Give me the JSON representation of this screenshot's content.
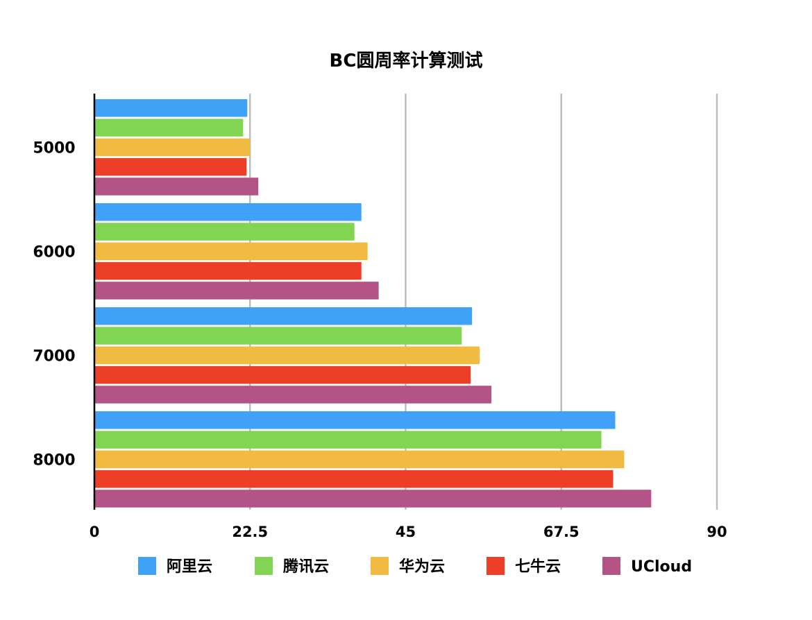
{
  "chart_data": {
    "type": "bar",
    "orientation": "horizontal",
    "title": "BC圆周率计算测试",
    "categories": [
      "5000",
      "6000",
      "7000",
      "8000"
    ],
    "series": [
      {
        "name": "阿里云",
        "color": "#3fa2f7",
        "values": [
          22.1,
          38.6,
          54.6,
          75.3
        ]
      },
      {
        "name": "腾讯云",
        "color": "#82d552",
        "values": [
          21.5,
          37.6,
          53.1,
          73.3
        ]
      },
      {
        "name": "华为云",
        "color": "#f0bb40",
        "values": [
          22.5,
          39.5,
          55.7,
          76.6
        ]
      },
      {
        "name": "七牛云",
        "color": "#ed3f27",
        "values": [
          22.0,
          38.6,
          54.4,
          75.0
        ]
      },
      {
        "name": "UCloud",
        "color": "#b45486",
        "values": [
          23.7,
          41.1,
          57.4,
          80.5
        ]
      }
    ],
    "xlim": [
      0,
      90
    ],
    "xticks": [
      "0",
      "22.5",
      "45",
      "67.5",
      "90"
    ],
    "grid": true,
    "legend": "bottom"
  }
}
